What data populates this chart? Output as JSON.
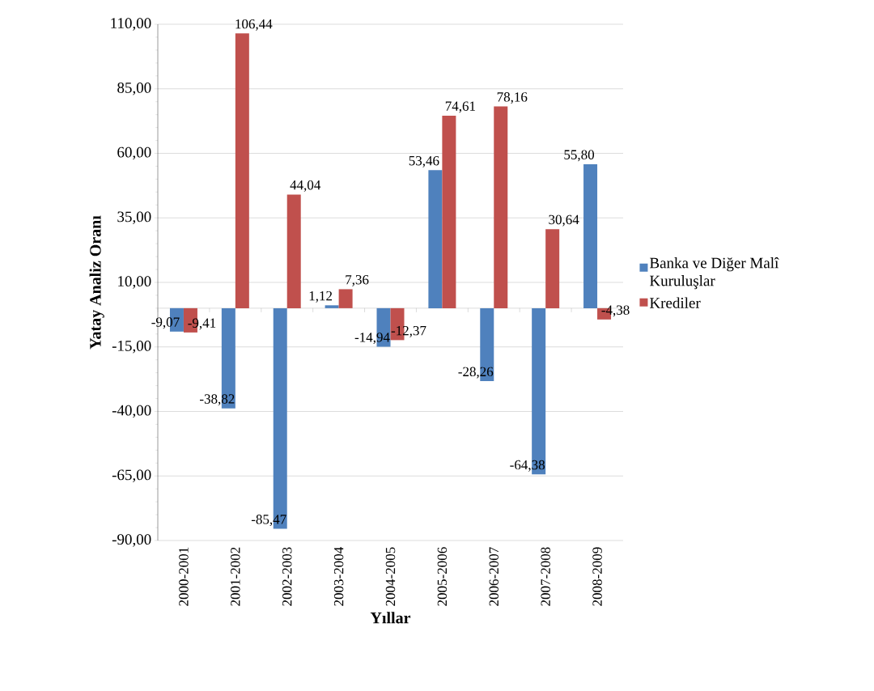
{
  "chart_data": {
    "type": "bar",
    "xlabel": "Yıllar",
    "ylabel": "Yatay Analiz Oranı",
    "categories": [
      "2000-2001",
      "2001-2002",
      "2002-2003",
      "2003-2004",
      "2004-2005",
      "2005-2006",
      "2006-2007",
      "2007-2008",
      "2008-2009"
    ],
    "series": [
      {
        "name": "Banka ve Diğer Malî Kuruluşlar",
        "color": "#4f81bd",
        "values": [
          -9.07,
          -38.82,
          -85.47,
          1.12,
          -14.94,
          53.46,
          -28.26,
          -64.38,
          55.8
        ],
        "value_labels": [
          "-9,07",
          "-38,82",
          "-85,47",
          "1,12",
          "-14,94",
          "53,46",
          "-28,26",
          "-64,38",
          "55,80"
        ]
      },
      {
        "name": "Krediler",
        "color": "#c0504d",
        "values": [
          -9.41,
          106.44,
          44.04,
          7.36,
          -12.37,
          74.61,
          78.16,
          30.64,
          -4.38
        ],
        "value_labels": [
          "-9,41",
          "106,44",
          "44,04",
          "7,36",
          "-12,37",
          "74,61",
          "78,16",
          "30,64",
          "-4,38"
        ]
      }
    ],
    "ylim": [
      -90,
      110
    ],
    "yticks": [
      {
        "value": -90,
        "label": "-90,00"
      },
      {
        "value": -65,
        "label": "-65,00"
      },
      {
        "value": -40,
        "label": "-40,00"
      },
      {
        "value": -15,
        "label": "-15,00"
      },
      {
        "value": 10,
        "label": "10,00"
      },
      {
        "value": 35,
        "label": "35,00"
      },
      {
        "value": 60,
        "label": "60,00"
      },
      {
        "value": 85,
        "label": "85,00"
      },
      {
        "value": 110,
        "label": "110,00"
      }
    ],
    "grid": "y",
    "legend": "right"
  }
}
